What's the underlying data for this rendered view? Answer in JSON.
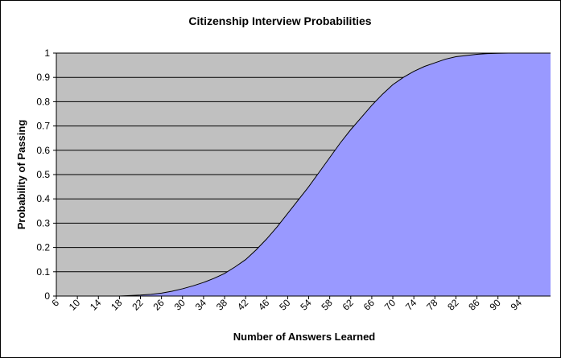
{
  "chart_data": {
    "type": "area",
    "title": "Citizenship Interview Probabilities",
    "xlabel": "Number of Answers Learned",
    "ylabel": "Probability of Passing",
    "x_tick_labels": [
      "6",
      "10",
      "14",
      "18",
      "22",
      "26",
      "30",
      "34",
      "38",
      "42",
      "46",
      "50",
      "54",
      "58",
      "62",
      "66",
      "70",
      "74",
      "78",
      "82",
      "86",
      "90",
      "94"
    ],
    "y_tick_labels": [
      "0",
      "0.1",
      "0.2",
      "0.3",
      "0.4",
      "0.5",
      "0.6",
      "0.7",
      "0.8",
      "0.9",
      "1"
    ],
    "xlim": [
      6,
      100
    ],
    "ylim": [
      0,
      1
    ],
    "grid": "horizontal",
    "legend": "none",
    "colors": {
      "plot_background": "#c0c0c0",
      "fill": "#9999ff",
      "line": "#000000"
    },
    "series": [
      {
        "x": [
          6,
          10,
          14,
          18,
          20,
          22,
          24,
          26,
          28,
          30,
          32,
          34,
          36,
          38,
          40,
          42,
          44,
          46,
          48,
          50,
          52,
          54,
          56,
          58,
          60,
          62,
          64,
          66,
          68,
          70,
          72,
          74,
          76,
          78,
          80,
          82,
          84,
          86,
          88,
          90,
          92,
          94,
          96,
          98,
          100
        ],
        "values": [
          0,
          0,
          0,
          0,
          0.002,
          0.004,
          0.007,
          0.012,
          0.02,
          0.03,
          0.042,
          0.056,
          0.073,
          0.093,
          0.12,
          0.15,
          0.19,
          0.235,
          0.285,
          0.34,
          0.395,
          0.45,
          0.51,
          0.57,
          0.63,
          0.685,
          0.735,
          0.785,
          0.83,
          0.87,
          0.9,
          0.925,
          0.945,
          0.96,
          0.975,
          0.985,
          0.99,
          0.995,
          0.998,
          0.999,
          1,
          1,
          1,
          1,
          1
        ]
      }
    ]
  }
}
